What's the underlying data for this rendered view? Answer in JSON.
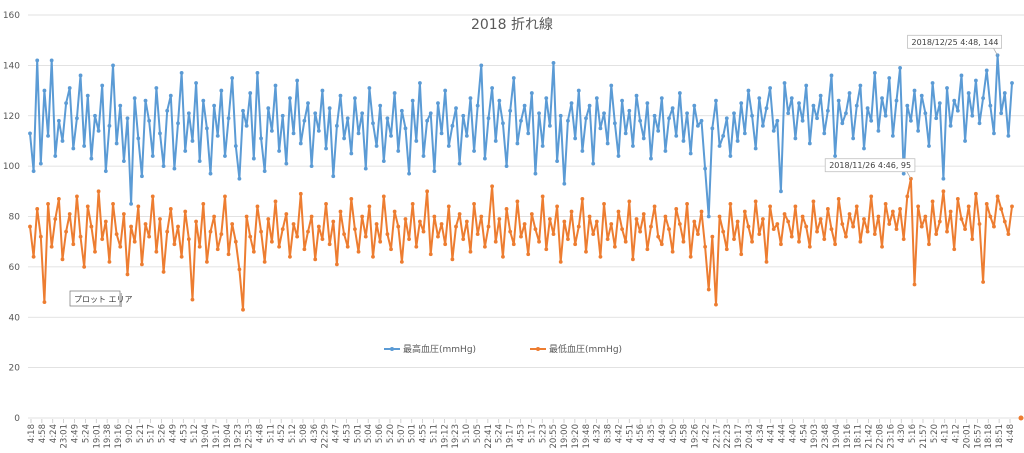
{
  "chart_data": {
    "type": "line",
    "title": "2018  折れ線",
    "ylim": [
      0,
      160
    ],
    "y_ticks": [
      0,
      20,
      40,
      60,
      80,
      100,
      120,
      140,
      160
    ],
    "grid": true,
    "legend_position": "bottom",
    "x_tick_labels": [
      "4:18",
      "4:58",
      "4:24",
      "23:01",
      "4:49",
      "5:24",
      "19:01",
      "19:38",
      "19:16",
      "9:02",
      "5:21",
      "5:17",
      "5:26",
      "4:49",
      "4:53",
      "5:12",
      "19:04",
      "19:17",
      "19:04",
      "19:23",
      "22:53",
      "4:48",
      "5:11",
      "4:52",
      "5:12",
      "5:08",
      "4:36",
      "22:29",
      "4:47",
      "4:53",
      "5:01",
      "5:04",
      "5:06",
      "5:20",
      "5:07",
      "5:01",
      "4:55",
      "5:11",
      "19:12",
      "19:23",
      "5:10",
      "5:05",
      "22:41",
      "5:24",
      "19:17",
      "4:53",
      "5:17",
      "5:23",
      "20:55",
      "19:00",
      "19:20",
      "19:48",
      "4:32",
      "8:38",
      "4:42",
      "4:51",
      "4:56",
      "4:35",
      "4:49",
      "4:50",
      "4:58",
      "19:26",
      "4:22",
      "22:17",
      "22:23",
      "19:17",
      "20:43",
      "4:34",
      "4:41",
      "4:44",
      "4:40",
      "4:54",
      "19:03",
      "23:48",
      "19:04",
      "19:16",
      "18:11",
      "21:42",
      "22:08",
      "23:16",
      "4:30",
      "5:16",
      "21:57",
      "5:20",
      "4:13",
      "4:12",
      "20:01",
      "16:57",
      "18:18",
      "18:51",
      "4:48"
    ],
    "series": [
      {
        "name": "最高血圧(mmHg)",
        "color": "#5B9BD5",
        "values": [
          113,
          98,
          142,
          101,
          130,
          112,
          142,
          104,
          118,
          110,
          125,
          131,
          107,
          119,
          136,
          108,
          128,
          103,
          120,
          114,
          132,
          98,
          116,
          140,
          109,
          124,
          102,
          119,
          85,
          127,
          111,
          96,
          126,
          118,
          104,
          131,
          113,
          100,
          122,
          128,
          99,
          117,
          137,
          106,
          121,
          110,
          133,
          102,
          126,
          115,
          97,
          124,
          112,
          130,
          104,
          119,
          135,
          108,
          95,
          122,
          116,
          129,
          103,
          137,
          111,
          98,
          123,
          114,
          132,
          106,
          120,
          101,
          127,
          113,
          134,
          109,
          118,
          125,
          100,
          121,
          114,
          130,
          107,
          123,
          96,
          116,
          128,
          111,
          119,
          105,
          127,
          113,
          121,
          99,
          131,
          117,
          108,
          124,
          102,
          119,
          112,
          129,
          106,
          122,
          115,
          97,
          126,
          110,
          133,
          104,
          118,
          121,
          98,
          125,
          113,
          130,
          108,
          116,
          123,
          101,
          120,
          112,
          127,
          106,
          124,
          140,
          103,
          119,
          131,
          110,
          126,
          117,
          100,
          122,
          135,
          109,
          118,
          124,
          113,
          129,
          97,
          121,
          108,
          127,
          116,
          141,
          102,
          120,
          93,
          118,
          125,
          111,
          130,
          106,
          119,
          124,
          101,
          127,
          115,
          121,
          109,
          132,
          117,
          104,
          126,
          113,
          122,
          108,
          128,
          118,
          111,
          125,
          103,
          120,
          114,
          127,
          106,
          119,
          123,
          112,
          129,
          110,
          121,
          105,
          124,
          116,
          118,
          99,
          80,
          115,
          126,
          108,
          112,
          119,
          104,
          121,
          110,
          125,
          113,
          130,
          120,
          107,
          127,
          116,
          123,
          131,
          114,
          118,
          90,
          133,
          121,
          127,
          111,
          125,
          118,
          132,
          109,
          124,
          119,
          128,
          113,
          122,
          136,
          104,
          126,
          117,
          121,
          129,
          111,
          124,
          132,
          107,
          123,
          118,
          137,
          114,
          127,
          120,
          135,
          112,
          126,
          139,
          97,
          124,
          118,
          130,
          114,
          128,
          121,
          108,
          133,
          119,
          125,
          95,
          131,
          116,
          126,
          122,
          136,
          110,
          129,
          120,
          134,
          117,
          127,
          138,
          124,
          113,
          144,
          121,
          129,
          112,
          133
        ]
      },
      {
        "name": "最低血圧(mmHg)",
        "color": "#ED7D31",
        "values": [
          76,
          64,
          83,
          72,
          46,
          85,
          68,
          79,
          87,
          63,
          74,
          81,
          69,
          88,
          72,
          60,
          84,
          76,
          66,
          90,
          71,
          78,
          62,
          85,
          73,
          68,
          81,
          57,
          76,
          70,
          84,
          61,
          77,
          72,
          88,
          66,
          79,
          58,
          74,
          83,
          69,
          76,
          64,
          82,
          71,
          47,
          78,
          68,
          85,
          62,
          74,
          80,
          67,
          73,
          88,
          65,
          77,
          70,
          59,
          43,
          80,
          72,
          66,
          84,
          74,
          62,
          79,
          70,
          86,
          68,
          75,
          81,
          64,
          77,
          72,
          89,
          67,
          74,
          80,
          63,
          76,
          71,
          85,
          69,
          78,
          61,
          82,
          73,
          68,
          87,
          75,
          66,
          80,
          72,
          84,
          64,
          77,
          70,
          88,
          73,
          67,
          82,
          76,
          62,
          79,
          71,
          85,
          68,
          78,
          74,
          90,
          65,
          80,
          72,
          77,
          69,
          84,
          63,
          76,
          81,
          71,
          78,
          66,
          85,
          73,
          80,
          68,
          76,
          92,
          70,
          79,
          64,
          83,
          74,
          69,
          86,
          72,
          77,
          65,
          81,
          75,
          70,
          88,
          67,
          79,
          73,
          84,
          62,
          78,
          71,
          82,
          69,
          76,
          87,
          66,
          80,
          73,
          78,
          64,
          85,
          71,
          77,
          68,
          82,
          75,
          70,
          86,
          63,
          79,
          74,
          81,
          67,
          76,
          84,
          72,
          69,
          80,
          75,
          66,
          83,
          77,
          70,
          85,
          64,
          78,
          73,
          82,
          68,
          51,
          72,
          45,
          80,
          74,
          67,
          85,
          71,
          78,
          65,
          82,
          76,
          70,
          86,
          73,
          79,
          62,
          84,
          75,
          77,
          69,
          81,
          78,
          72,
          84,
          70,
          80,
          76,
          68,
          86,
          74,
          79,
          71,
          83,
          75,
          69,
          87,
          77,
          72,
          81,
          76,
          84,
          70,
          79,
          74,
          88,
          73,
          80,
          68,
          85,
          77,
          82,
          75,
          83,
          71,
          88,
          95,
          53,
          84,
          76,
          80,
          69,
          86,
          73,
          78,
          90,
          74,
          82,
          67,
          87,
          79,
          75,
          84,
          71,
          89,
          77,
          54,
          85,
          80,
          76,
          88,
          83,
          78,
          73,
          84
        ]
      }
    ],
    "end_marker": {
      "series": 1,
      "value": 0
    },
    "annotations": [
      {
        "text": "2018/12/25 4:48, 144",
        "series": 0,
        "index": 268
      },
      {
        "text": "2018/11/26 4:46, 95",
        "series": 1,
        "index": 244
      }
    ],
    "tooltip": "プロット エリア"
  }
}
